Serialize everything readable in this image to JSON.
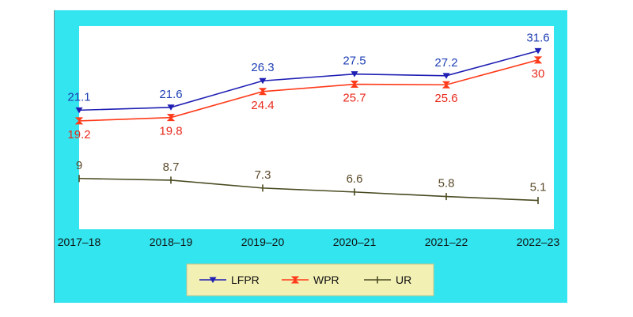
{
  "chart_data": {
    "type": "line",
    "categories": [
      "2017–18",
      "2018–19",
      "2019–20",
      "2020–21",
      "2021–22",
      "2022–23"
    ],
    "series": [
      {
        "name": "LFPR",
        "values": [
          21.1,
          21.6,
          26.3,
          27.5,
          27.2,
          31.6
        ],
        "color": "#1f1fb4",
        "marker": "triangle-down",
        "label_position": "above"
      },
      {
        "name": "WPR",
        "values": [
          19.2,
          19.8,
          24.4,
          25.7,
          25.6,
          30
        ],
        "color": "#ff3a1a",
        "marker": "hourglass",
        "label_position": "below"
      },
      {
        "name": "UR",
        "values": [
          9,
          8.7,
          7.3,
          6.6,
          5.8,
          5.1
        ],
        "color": "#4a4a22",
        "marker": "vertical-tick",
        "label_position": "above"
      }
    ],
    "ylim": [
      0,
      36
    ],
    "grid": false,
    "legend_position": "bottom-center",
    "colors": {
      "outer_background": "#33e5ef",
      "plot_background": "#ffffff",
      "legend_background": "#f3f0b4",
      "label_colors": {
        "LFPR": "#1f3fb4",
        "WPR": "#e8291c",
        "UR": "#5a4a2a"
      }
    }
  }
}
